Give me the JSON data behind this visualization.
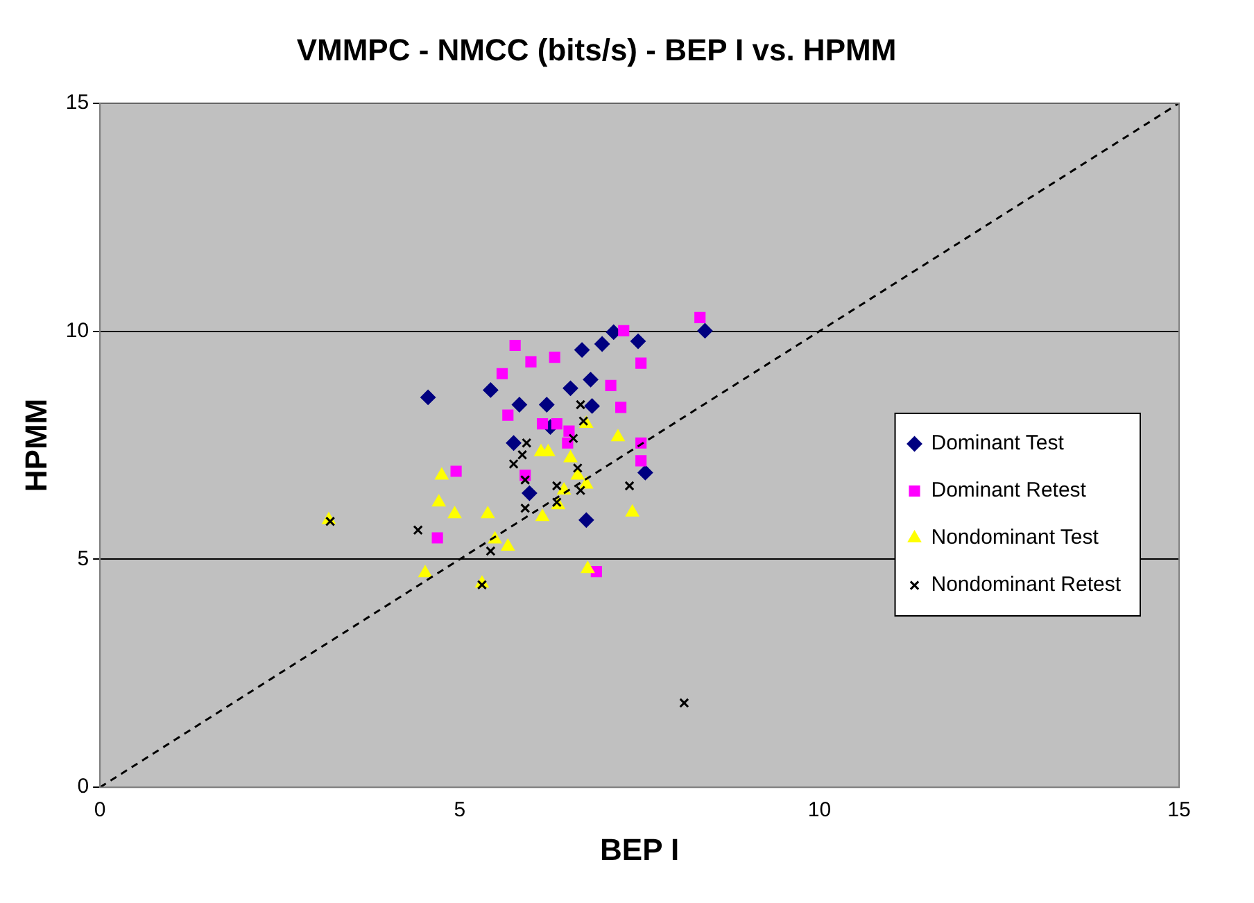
{
  "chart_data": {
    "type": "scatter",
    "title": "VMMPC - NMCC (bits/s) - BEP I vs. HPMM",
    "xlabel": "BEP I",
    "ylabel": "HPMM",
    "xlim": [
      0,
      15
    ],
    "xticks": [
      0,
      5,
      10,
      15
    ],
    "ylim": [
      0,
      15
    ],
    "yticks": [
      0,
      5,
      10,
      15
    ],
    "grid": "y",
    "legend": "right",
    "series": [
      {
        "name": "Dominant Test",
        "color": "#000080",
        "marker": "diamond",
        "x": [
          4.56,
          5.43,
          5.83,
          5.75,
          6.21,
          5.97,
          6.7,
          6.98,
          7.14,
          7.48,
          6.82,
          6.54,
          6.84,
          6.76,
          7.58,
          8.41,
          6.26
        ],
        "values": [
          8.55,
          8.71,
          8.39,
          7.55,
          8.39,
          6.45,
          9.59,
          9.72,
          9.98,
          9.78,
          8.94,
          8.75,
          8.36,
          5.86,
          6.9,
          10.01,
          7.9
        ]
      },
      {
        "name": "Dominant Retest",
        "color": "#ff00ff",
        "marker": "square",
        "x": [
          5.77,
          5.59,
          5.99,
          6.32,
          5.67,
          7.28,
          8.34,
          7.1,
          7.52,
          7.24,
          7.52,
          7.52,
          6.15,
          6.35,
          6.52,
          6.5,
          5.91,
          4.95,
          4.69,
          6.9
        ],
        "values": [
          9.69,
          9.07,
          9.33,
          9.43,
          8.16,
          10.01,
          10.3,
          8.81,
          9.3,
          8.33,
          7.55,
          7.16,
          7.97,
          7.97,
          7.81,
          7.55,
          6.84,
          6.93,
          5.47,
          4.73
        ]
      },
      {
        "name": "Nondominant Test",
        "color": "#ffff00",
        "marker": "triangle",
        "x": [
          3.18,
          4.52,
          4.75,
          4.71,
          4.93,
          5.39,
          5.31,
          5.49,
          5.67,
          6.13,
          6.23,
          6.15,
          6.54,
          6.37,
          6.45,
          6.76,
          6.76,
          6.78,
          7.2,
          7.4,
          6.64
        ],
        "values": [
          5.86,
          4.7,
          6.84,
          6.25,
          5.99,
          5.99,
          4.47,
          5.44,
          5.28,
          7.35,
          7.35,
          5.93,
          7.22,
          6.19,
          6.51,
          7.97,
          6.64,
          4.79,
          7.68,
          6.03,
          6.84
        ]
      },
      {
        "name": "Nondominant Retest",
        "color": "#000000",
        "marker": "cross",
        "x": [
          3.2,
          4.42,
          5.31,
          5.43,
          5.75,
          5.87,
          5.93,
          5.91,
          5.91,
          6.35,
          6.35,
          6.68,
          6.72,
          6.58,
          6.64,
          6.68,
          7.36,
          8.12
        ],
        "values": [
          5.83,
          5.64,
          4.44,
          5.18,
          7.09,
          7.29,
          7.55,
          6.74,
          6.12,
          6.61,
          6.25,
          8.39,
          8.03,
          7.65,
          7.0,
          6.51,
          6.61,
          1.85
        ]
      },
      {
        "type": "line",
        "color": "#000000",
        "line_style": "dashed",
        "marker": "none",
        "x": [
          0,
          15
        ],
        "values": [
          0,
          15
        ]
      }
    ]
  }
}
